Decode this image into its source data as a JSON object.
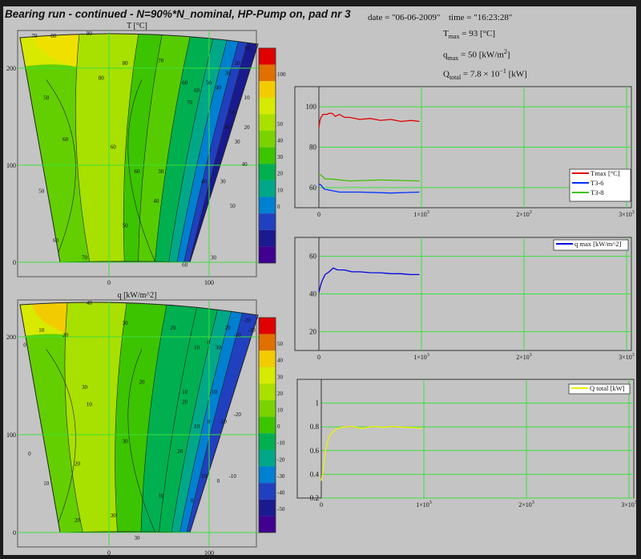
{
  "header": {
    "title": "Bearing run - continued - N=90%*N_nominal, HP-Pump on, pad nr 3",
    "date_text": "date = \"06-06-2009\"",
    "time_text": "time = \"16:23:28\"",
    "tmax_sym": "T",
    "tmax_sub": "max",
    "tmax_rest": " = 93  [°C]",
    "qmax_sym": "q",
    "qmax_sub": "max",
    "qmax_rest": " = 50  [kW/m",
    "qmax_sup": "2",
    "qmax_end": "]",
    "qtot_sym": "Q",
    "qtot_sub": "total",
    "qtot_rest": " = 7.8 × 10",
    "qtot_sup": "−1",
    "qtot_end": "   [kW]"
  },
  "chart_data": [
    {
      "type": "heatmap",
      "title": "T [°C]",
      "y_ticks": [
        200,
        100,
        0
      ],
      "x_ticks": [
        0,
        100
      ],
      "colorbar_labels": [
        "",
        "100",
        "",
        "",
        "50",
        "40",
        "30",
        "20",
        "10",
        "0",
        "",
        ""
      ],
      "contour_labels": [
        "70",
        "80",
        "90",
        "80",
        "70",
        "60",
        "50",
        "40",
        "30",
        "20",
        "10",
        "70",
        "60",
        "50",
        "40",
        "30",
        "20",
        "60",
        "60",
        "50",
        "40",
        "30",
        "60",
        "70",
        "60",
        "50",
        "40",
        "50",
        "30",
        "10",
        "30",
        "40",
        "60",
        "80",
        "50"
      ],
      "colors": [
        "#e00000",
        "#e07000",
        "#f2cc00",
        "#d6ea00",
        "#a9e000",
        "#7ad200",
        "#3cc400",
        "#00b050",
        "#00a888",
        "#0080d0",
        "#2040c0",
        "#1a1a90",
        "#400090"
      ]
    },
    {
      "type": "heatmap",
      "title": "q [kW/m^2]",
      "y_ticks": [
        200,
        100,
        0
      ],
      "x_ticks": [
        0,
        100
      ],
      "colorbar_labels": [
        "",
        "50",
        "40",
        "30",
        "20",
        "10",
        "0",
        "-10",
        "-20",
        "-30",
        "-40",
        "-50",
        ""
      ],
      "contour_labels": [
        "40",
        "30",
        "20",
        "10",
        "0",
        "30",
        "20",
        "-10",
        "-20",
        "-30",
        "0",
        "10",
        "20",
        "30",
        "20",
        "10",
        "-10",
        "10",
        "20",
        "10",
        "0",
        "-10",
        "-20",
        "0",
        "10",
        "20",
        "30",
        "20",
        "10",
        "0",
        "-10",
        "20",
        "30",
        "30",
        "10",
        "0"
      ],
      "colors": [
        "#e00000",
        "#e07000",
        "#f2cc00",
        "#d6ea00",
        "#a9e000",
        "#7ad200",
        "#3cc400",
        "#00b050",
        "#00a888",
        "#0080d0",
        "#2040c0",
        "#1a1a90",
        "#400090"
      ]
    },
    {
      "type": "line",
      "xlim": [
        0,
        3000
      ],
      "ylim": [
        50,
        110
      ],
      "y_ticks": [
        60,
        80,
        100
      ],
      "x_tick_labels": [
        {
          "v": 0,
          "base": "0",
          "exp": ""
        },
        {
          "v": 1000,
          "base": "1×10",
          "exp": "3"
        },
        {
          "v": 2000,
          "base": "2×10",
          "exp": "3"
        },
        {
          "v": 3000,
          "base": "3×10",
          "exp": "3"
        }
      ],
      "legend_position": "right",
      "series": [
        {
          "name": "Tmax [°C]",
          "color": "#e00000",
          "points": [
            [
              0,
              90
            ],
            [
              10,
              93
            ],
            [
              20,
              95
            ],
            [
              40,
              96
            ],
            [
              60,
              96.5
            ],
            [
              80,
              96
            ],
            [
              100,
              97
            ],
            [
              130,
              96.5
            ],
            [
              160,
              95.5
            ],
            [
              200,
              96
            ],
            [
              250,
              95
            ],
            [
              300,
              94.5
            ],
            [
              400,
              94
            ],
            [
              500,
              94
            ],
            [
              600,
              93.5
            ],
            [
              700,
              93.5
            ],
            [
              800,
              93
            ],
            [
              900,
              93
            ],
            [
              980,
              93
            ]
          ]
        },
        {
          "name": "T3-6",
          "color": "#0030ff",
          "points": [
            [
              0,
              62
            ],
            [
              20,
              61
            ],
            [
              50,
              59.5
            ],
            [
              100,
              58.5
            ],
            [
              200,
              58
            ],
            [
              400,
              57.5
            ],
            [
              700,
              57.5
            ],
            [
              980,
              57.5
            ]
          ]
        },
        {
          "name": "T3-8",
          "color": "#40c000",
          "points": [
            [
              0,
              67
            ],
            [
              20,
              66
            ],
            [
              60,
              64.5
            ],
            [
              120,
              64
            ],
            [
              300,
              63.5
            ],
            [
              600,
              63.5
            ],
            [
              980,
              63.5
            ]
          ]
        }
      ]
    },
    {
      "type": "line",
      "xlim": [
        0,
        3000
      ],
      "ylim": [
        10,
        70
      ],
      "y_ticks": [
        20,
        40,
        60
      ],
      "x_tick_labels": [
        {
          "v": 0,
          "base": "0",
          "exp": ""
        },
        {
          "v": 1000,
          "base": "1×10",
          "exp": "3"
        },
        {
          "v": 2000,
          "base": "2×10",
          "exp": "3"
        },
        {
          "v": 3000,
          "base": "3×10",
          "exp": "3"
        }
      ],
      "legend_position": "top-right",
      "series": [
        {
          "name": "q max [kW/m^2]",
          "color": "#0000e0",
          "points": [
            [
              0,
              41
            ],
            [
              15,
              44
            ],
            [
              30,
              47
            ],
            [
              60,
              50
            ],
            [
              100,
              52
            ],
            [
              140,
              53.5
            ],
            [
              180,
              53
            ],
            [
              250,
              52.5
            ],
            [
              320,
              52
            ],
            [
              400,
              51.5
            ],
            [
              500,
              51.5
            ],
            [
              600,
              51
            ],
            [
              700,
              51
            ],
            [
              800,
              50.5
            ],
            [
              900,
              50.5
            ],
            [
              980,
              50
            ]
          ]
        }
      ]
    },
    {
      "type": "line",
      "xlim": [
        0,
        3000
      ],
      "ylim": [
        0.2,
        1.2
      ],
      "y_ticks": [
        0.2,
        0.4,
        0.6,
        0.8,
        1
      ],
      "x_tick_labels": [
        {
          "v": 0,
          "base": "0",
          "exp": ""
        },
        {
          "v": 1000,
          "base": "1×10",
          "exp": "3"
        },
        {
          "v": 2000,
          "base": "2×10",
          "exp": "3"
        },
        {
          "v": 3000,
          "base": "3×10",
          "exp": "3"
        }
      ],
      "legend_position": "top-right",
      "series": [
        {
          "name": "Q total [kW]",
          "color": "#f0f000",
          "points": [
            [
              0,
              0.35
            ],
            [
              20,
              0.45
            ],
            [
              40,
              0.6
            ],
            [
              70,
              0.7
            ],
            [
              100,
              0.75
            ],
            [
              150,
              0.78
            ],
            [
              200,
              0.8
            ],
            [
              300,
              0.8
            ],
            [
              400,
              0.79
            ],
            [
              500,
              0.8
            ],
            [
              600,
              0.8
            ],
            [
              700,
              0.8
            ],
            [
              800,
              0.8
            ],
            [
              900,
              0.79
            ],
            [
              980,
              0.79
            ]
          ]
        }
      ]
    }
  ]
}
